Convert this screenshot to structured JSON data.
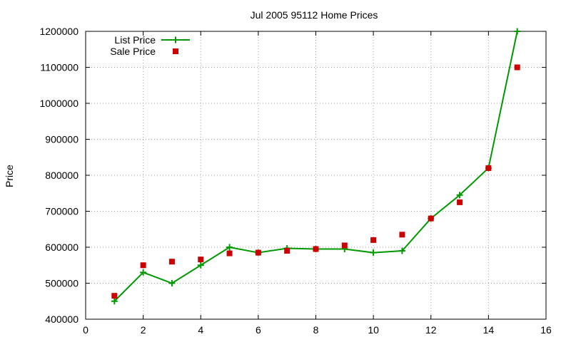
{
  "chart_data": {
    "type": "line",
    "title": "Jul 2005 95112 Home Prices",
    "xlabel": "",
    "ylabel": "Price",
    "xlim": [
      0,
      16
    ],
    "ylim": [
      400000,
      1200000
    ],
    "x_ticks": [
      0,
      2,
      4,
      6,
      8,
      10,
      12,
      14,
      16
    ],
    "y_ticks": [
      400000,
      500000,
      600000,
      700000,
      800000,
      900000,
      1000000,
      1100000,
      1200000
    ],
    "grid": true,
    "legend_position": "top-left",
    "series": [
      {
        "name": "List Price",
        "style": "line-with-plus-markers",
        "color": "#009900",
        "x": [
          1,
          2,
          3,
          4,
          5,
          6,
          7,
          8,
          9,
          10,
          11,
          12,
          13,
          14,
          15
        ],
        "values": [
          450000,
          530000,
          500000,
          550000,
          600000,
          585000,
          597000,
          595000,
          595000,
          585000,
          590000,
          680000,
          745000,
          820000,
          1200000
        ]
      },
      {
        "name": "Sale Price",
        "style": "square-markers",
        "color": "#cc0000",
        "x": [
          1,
          2,
          3,
          4,
          5,
          6,
          7,
          8,
          9,
          10,
          11,
          12,
          13,
          14,
          15
        ],
        "values": [
          465000,
          550000,
          560000,
          566000,
          583000,
          585000,
          590000,
          595000,
          605000,
          620000,
          635000,
          680000,
          725000,
          820000,
          1100000
        ]
      }
    ]
  }
}
